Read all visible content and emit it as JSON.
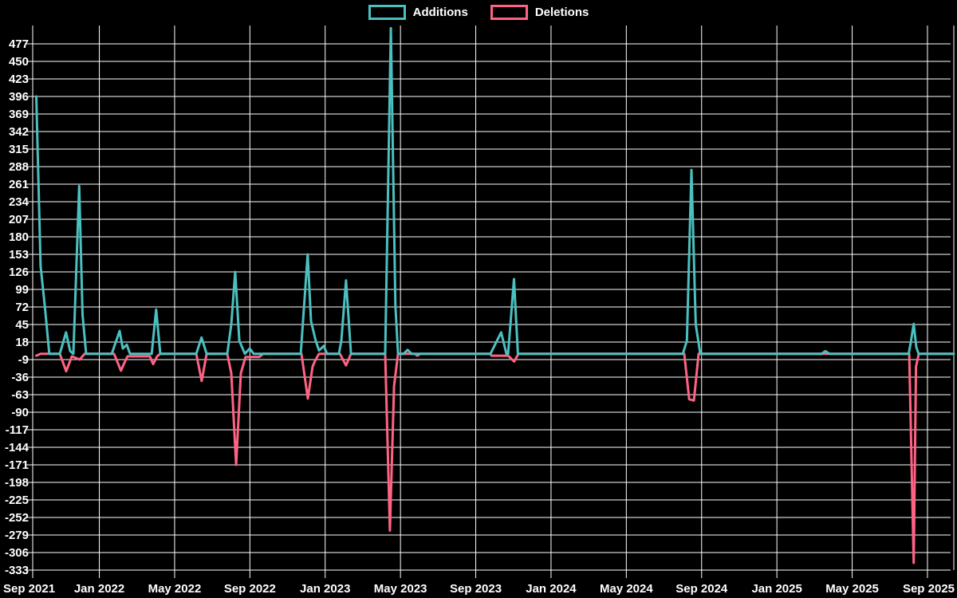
{
  "chart_data": {
    "type": "line",
    "title": "",
    "legend_position": "top-center",
    "background_color": "#000000",
    "grid_color": "#ffffff",
    "text_color": "#ffffff",
    "legend": [
      {
        "label": "Additions",
        "color": "#4bc0c0"
      },
      {
        "label": "Deletions",
        "color": "#ff6384"
      }
    ],
    "y_axis": {
      "tick_step": 27,
      "ticks": [
        477,
        450,
        423,
        396,
        369,
        342,
        315,
        288,
        261,
        234,
        207,
        180,
        153,
        126,
        99,
        72,
        45,
        18,
        -9,
        -36,
        -63,
        -90,
        -117,
        -144,
        -171,
        -198,
        -225,
        -252,
        -279,
        -306,
        -333
      ]
    },
    "x_axis": {
      "labels": [
        "Sep 2021",
        "Jan 2022",
        "May 2022",
        "Sep 2022",
        "Jan 2023",
        "May 2023",
        "Sep 2023",
        "Jan 2024",
        "May 2024",
        "Sep 2024",
        "Jan 2025",
        "May 2025",
        "Sep 2025"
      ],
      "label_month_positions": [
        0,
        4,
        8,
        12,
        16,
        20,
        24,
        28,
        32,
        36,
        40,
        44,
        48
      ],
      "month_at_left_edge": 0.46,
      "month_at_right_edge": 49.4
    },
    "series": [
      {
        "name": "Additions",
        "color": "#4bc0c0",
        "points": [
          [
            0.65,
            396
          ],
          [
            0.88,
            135
          ],
          [
            1.11,
            72
          ],
          [
            1.34,
            0
          ],
          [
            1.9,
            0
          ],
          [
            2.23,
            33
          ],
          [
            2.45,
            4
          ],
          [
            2.62,
            0
          ],
          [
            2.93,
            258
          ],
          [
            3.11,
            60
          ],
          [
            3.3,
            0
          ],
          [
            4.66,
            0
          ],
          [
            5.08,
            35
          ],
          [
            5.25,
            8
          ],
          [
            5.46,
            14
          ],
          [
            5.63,
            0
          ],
          [
            6.78,
            0
          ],
          [
            7.02,
            68
          ],
          [
            7.24,
            0
          ],
          [
            9.15,
            0
          ],
          [
            9.43,
            25
          ],
          [
            9.7,
            0
          ],
          [
            10.8,
            0
          ],
          [
            11.01,
            45
          ],
          [
            11.22,
            126
          ],
          [
            11.44,
            20
          ],
          [
            11.73,
            0
          ],
          [
            11.99,
            8
          ],
          [
            12.2,
            0
          ],
          [
            14.7,
            0
          ],
          [
            15.07,
            153
          ],
          [
            15.25,
            50
          ],
          [
            15.49,
            21
          ],
          [
            15.67,
            5
          ],
          [
            15.92,
            12
          ],
          [
            16.1,
            0
          ],
          [
            16.73,
            0
          ],
          [
            16.86,
            20
          ],
          [
            17.11,
            113
          ],
          [
            17.37,
            0
          ],
          [
            19.19,
            0
          ],
          [
            19.49,
            501
          ],
          [
            19.73,
            74
          ],
          [
            19.87,
            0
          ],
          [
            20.17,
            0
          ],
          [
            20.38,
            6
          ],
          [
            20.59,
            0
          ],
          [
            24.78,
            0
          ],
          [
            25.35,
            33
          ],
          [
            25.63,
            0
          ],
          [
            25.72,
            0
          ],
          [
            26.03,
            115
          ],
          [
            26.24,
            0
          ],
          [
            35.0,
            0
          ],
          [
            35.22,
            20
          ],
          [
            35.46,
            283
          ],
          [
            35.69,
            45
          ],
          [
            35.93,
            0
          ],
          [
            42.37,
            0
          ],
          [
            42.58,
            4
          ],
          [
            42.79,
            0
          ],
          [
            47.0,
            0
          ],
          [
            47.11,
            17
          ],
          [
            47.27,
            46
          ],
          [
            47.41,
            10
          ],
          [
            47.53,
            0
          ],
          [
            49.4,
            0
          ]
        ]
      },
      {
        "name": "Deletions",
        "color": "#ff6384",
        "points": [
          [
            0.65,
            -3
          ],
          [
            0.88,
            0
          ],
          [
            1.9,
            0
          ],
          [
            2.24,
            -27
          ],
          [
            2.54,
            -4
          ],
          [
            2.96,
            -9
          ],
          [
            3.22,
            0
          ],
          [
            4.78,
            0
          ],
          [
            5.15,
            -26
          ],
          [
            5.33,
            -14
          ],
          [
            5.5,
            -4
          ],
          [
            6.69,
            -4
          ],
          [
            6.86,
            -16
          ],
          [
            7.07,
            -4
          ],
          [
            7.24,
            0
          ],
          [
            9.15,
            0
          ],
          [
            9.44,
            -42
          ],
          [
            9.7,
            0
          ],
          [
            10.8,
            0
          ],
          [
            11.01,
            -30
          ],
          [
            11.27,
            -171
          ],
          [
            11.52,
            -30
          ],
          [
            11.77,
            -5
          ],
          [
            12.5,
            -5
          ],
          [
            12.71,
            0
          ],
          [
            14.74,
            0
          ],
          [
            15.08,
            -69
          ],
          [
            15.33,
            -20
          ],
          [
            15.46,
            -11
          ],
          [
            15.67,
            0
          ],
          [
            16.78,
            0
          ],
          [
            17.11,
            -18
          ],
          [
            17.37,
            0
          ],
          [
            19.19,
            0
          ],
          [
            19.44,
            -272
          ],
          [
            19.66,
            -50
          ],
          [
            19.87,
            0
          ],
          [
            20.76,
            0
          ],
          [
            20.89,
            -3
          ],
          [
            21.06,
            0
          ],
          [
            24.78,
            0
          ],
          [
            24.83,
            -3
          ],
          [
            25.72,
            -3
          ],
          [
            26.04,
            -12
          ],
          [
            26.27,
            0
          ],
          [
            35.08,
            0
          ],
          [
            35.34,
            -70
          ],
          [
            35.59,
            -72
          ],
          [
            35.84,
            0
          ],
          [
            47.03,
            0
          ],
          [
            47.27,
            -322
          ],
          [
            47.39,
            -20
          ],
          [
            47.54,
            0
          ],
          [
            49.4,
            0
          ]
        ]
      }
    ]
  }
}
